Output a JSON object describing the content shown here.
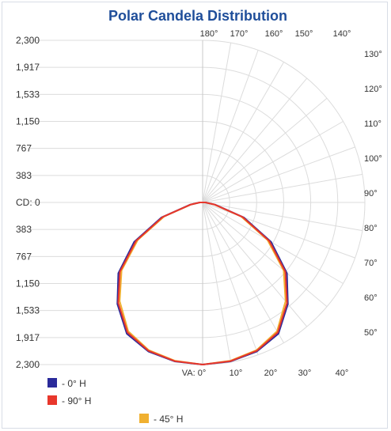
{
  "chart_data": {
    "type": "polar",
    "title": "Polar Candela Distribution",
    "cd_label": "CD:",
    "va_label": "VA:",
    "cd_max": 2300,
    "left_axis_ticks": [
      "2,300",
      "1,917",
      "1,533",
      "1,150",
      "767",
      "383",
      "CD: 0",
      "383",
      "767",
      "1,150",
      "1,533",
      "1,917",
      "2,300"
    ],
    "bottom_angle_labels": [
      "VA: 0°",
      "10°",
      "20°",
      "30°",
      "40°"
    ],
    "right_angle_labels": [
      "50°",
      "60°",
      "70°",
      "80°",
      "90°",
      "100°",
      "110°",
      "120°",
      "130°"
    ],
    "top_angle_labels": [
      "180°",
      "170°",
      "160°",
      "150°",
      "140°"
    ],
    "angle_step_deg": 10,
    "vertical_angles_deg": [
      0,
      10,
      20,
      30,
      40,
      50,
      60,
      70,
      80,
      90,
      100,
      110,
      120,
      130,
      140,
      150,
      160,
      170,
      180
    ],
    "series": [
      {
        "name": "- 0° H",
        "color": "#2a2a9a",
        "candela": [
          2300,
          2290,
          2250,
          2150,
          1880,
          1560,
          1120,
          620,
          180,
          40,
          0,
          0,
          0,
          0,
          0,
          0,
          0,
          0,
          0
        ]
      },
      {
        "name": "- 90° H",
        "color": "#e8372c",
        "candela": [
          2300,
          2285,
          2240,
          2130,
          1860,
          1530,
          1090,
          600,
          170,
          40,
          0,
          0,
          0,
          0,
          0,
          0,
          0,
          0,
          0
        ]
      },
      {
        "name": "- 45° H",
        "color": "#f0b030",
        "candela": [
          2300,
          2280,
          2230,
          2110,
          1830,
          1500,
          1060,
          580,
          165,
          40,
          0,
          0,
          0,
          0,
          0,
          0,
          0,
          0,
          0
        ]
      }
    ],
    "grid": true,
    "legend_position": "bottom-left"
  }
}
